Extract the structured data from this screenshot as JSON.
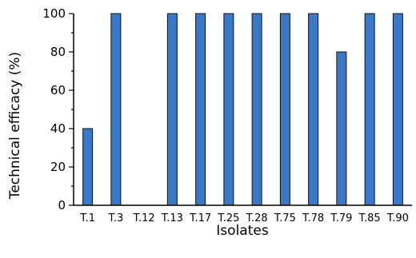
{
  "chart_data": {
    "type": "bar",
    "categories": [
      "T.1",
      "T.3",
      "T.12",
      "T.13",
      "T.17",
      "T.25",
      "T.28",
      "T.75",
      "T.78",
      "T.79",
      "T.85",
      "T.90"
    ],
    "values": [
      40,
      100,
      0,
      100,
      100,
      100,
      100,
      100,
      100,
      80,
      100,
      100
    ],
    "xlabel": "Isolates",
    "ylabel": "Technical efficacy (%)",
    "ylim": [
      0,
      100
    ],
    "yticks": [
      0,
      20,
      40,
      60,
      80,
      100
    ],
    "grid": false,
    "bar_color": "#3a78c9",
    "bar_edge_color": "#111111"
  }
}
